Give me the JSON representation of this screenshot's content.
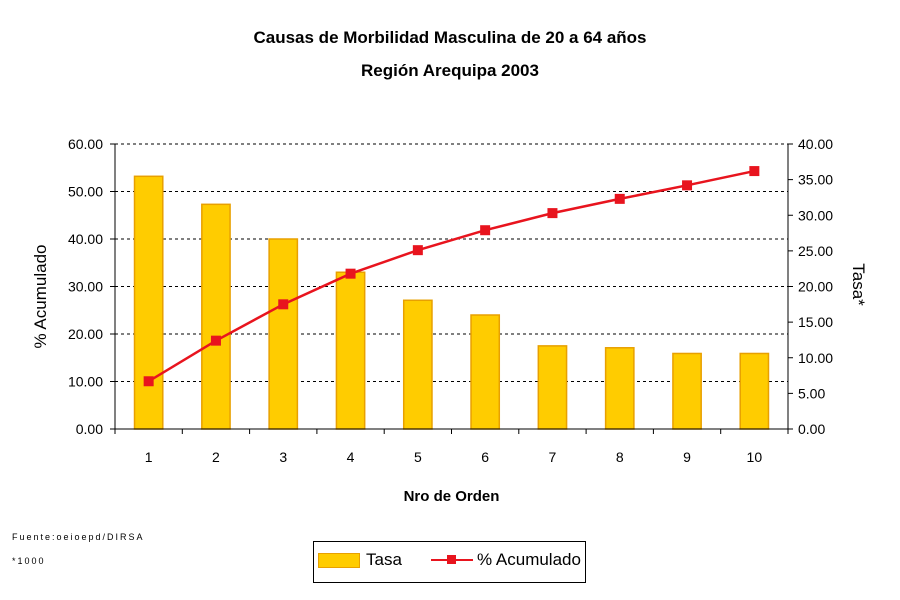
{
  "chart_data": {
    "type": "bar",
    "title": "Causas de Morbilidad Masculina de 20 a 64 años",
    "subtitle": "Región Arequipa 2003",
    "xlabel": "Nro de Orden",
    "ylabel_left": "% Acumulado",
    "ylabel_right": "Tasa*",
    "categories": [
      "1",
      "2",
      "3",
      "4",
      "5",
      "6",
      "7",
      "8",
      "9",
      "10"
    ],
    "y_left_ticks": [
      "0.00",
      "10.00",
      "20.00",
      "30.00",
      "40.00",
      "50.00",
      "60.00"
    ],
    "y_right_ticks": [
      "0.00",
      "5.00",
      "10.00",
      "15.00",
      "20.00",
      "25.00",
      "30.00",
      "35.00",
      "40.00"
    ],
    "ylim_left": [
      0,
      60
    ],
    "ylim_right": [
      0,
      40
    ],
    "grid": "dashed horizontal",
    "legend_position": "bottom",
    "series": [
      {
        "name": "Tasa",
        "type": "bar",
        "axis": "left",
        "color": "#FFCC00",
        "values": [
          53.2,
          47.3,
          40.0,
          33.0,
          27.1,
          24.0,
          17.5,
          17.1,
          15.9,
          15.9
        ]
      },
      {
        "name": "% Acumulado",
        "type": "line",
        "axis": "right",
        "color": "#E8141E",
        "values": [
          6.7,
          12.4,
          17.5,
          21.8,
          25.1,
          27.9,
          30.3,
          32.3,
          34.2,
          36.2
        ]
      }
    ]
  },
  "notes": {
    "source": "Fuente:oeioepd/DIRSA",
    "footnote": "*1000"
  }
}
